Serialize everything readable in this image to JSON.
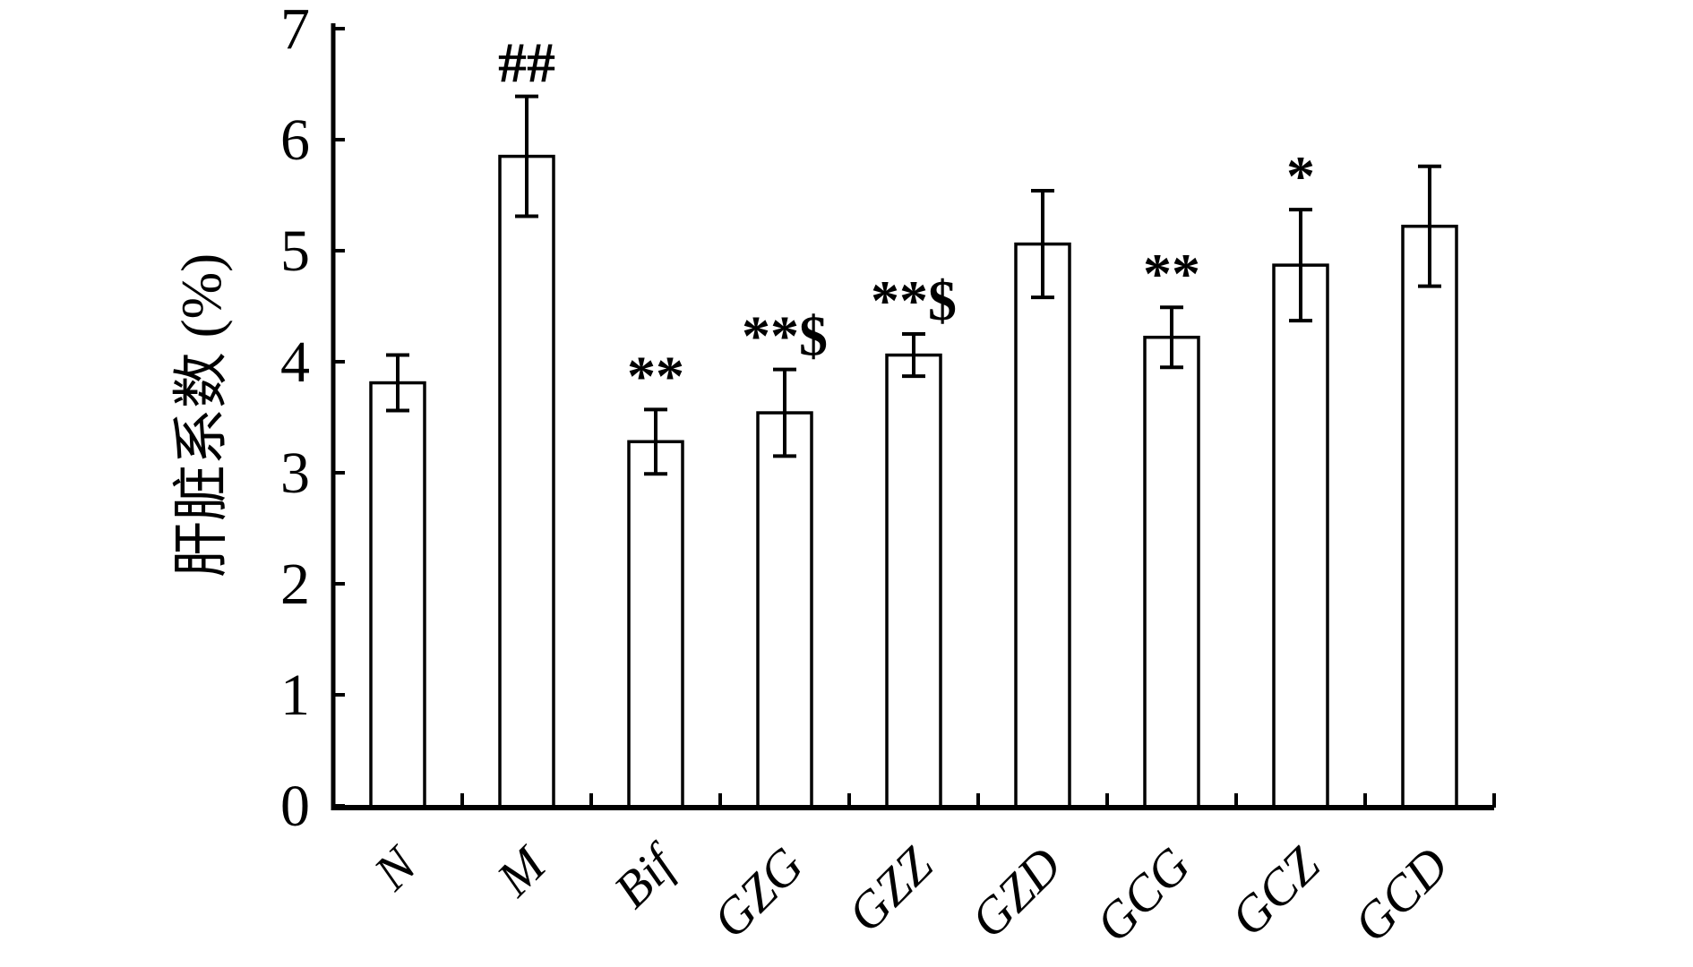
{
  "figure": {
    "background_color": "#ffffff",
    "ink_color": "#000000",
    "title": ""
  },
  "chart_data": {
    "type": "bar",
    "title": "",
    "xlabel": "",
    "ylabel": "肝脏系数 (%)",
    "ylim": [
      0,
      7
    ],
    "yticks": [
      0,
      1,
      2,
      3,
      4,
      5,
      6,
      7
    ],
    "grid": false,
    "legend": null,
    "bar_fill": "#ffffff",
    "bar_edge": "#000000",
    "error_bar_color": "#000000",
    "categories": [
      "N",
      "M",
      "Bif",
      "GZG",
      "GZZ",
      "GZD",
      "GCG",
      "GCZ",
      "GCD"
    ],
    "series": [
      {
        "name": "肝脏系数 (%)",
        "values": [
          3.81,
          5.85,
          3.28,
          3.54,
          4.06,
          5.06,
          4.22,
          4.87,
          5.22
        ],
        "errors": [
          0.25,
          0.54,
          0.29,
          0.39,
          0.19,
          0.48,
          0.27,
          0.5,
          0.54
        ],
        "annotations": [
          "",
          "##",
          "**",
          "**$",
          "**$",
          "",
          "**",
          "*",
          ""
        ]
      }
    ]
  }
}
